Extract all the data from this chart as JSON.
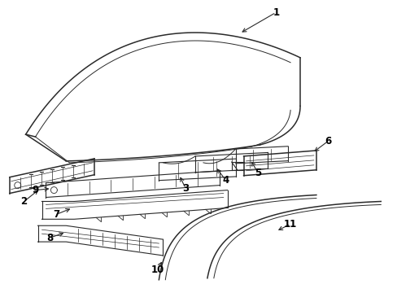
{
  "background_color": "#ffffff",
  "line_color": "#2a2a2a",
  "label_color": "#000000"
}
